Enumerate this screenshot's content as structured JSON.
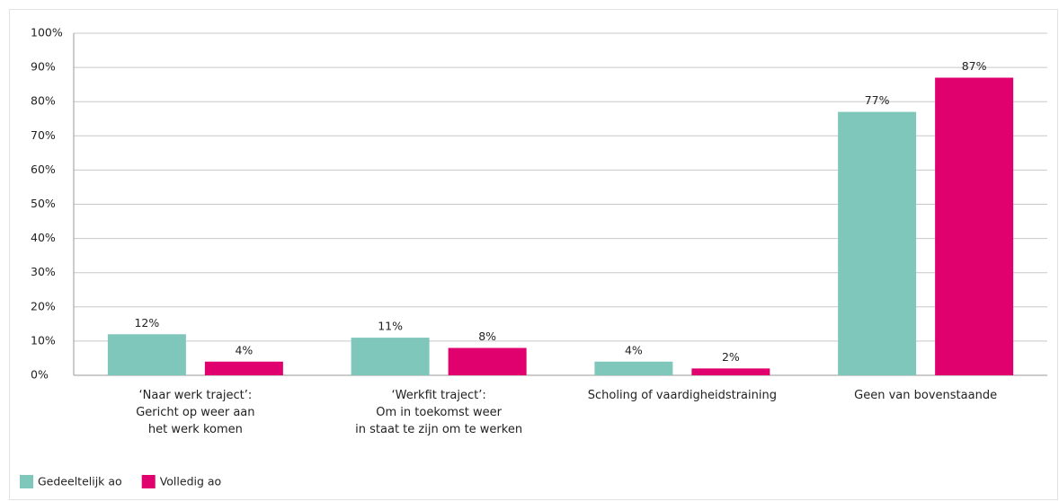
{
  "chart_data": {
    "type": "bar",
    "categories": [
      "‘Naar werk traject’:\nGericht op weer aan\nhet werk komen",
      "‘Werkfit traject’:\nOm in toekomst weer\nin staat te zijn om te werken",
      "Scholing of vaardigheidstraining",
      "Geen van bovenstaande"
    ],
    "series": [
      {
        "name": "Gedeeltelijk ao",
        "color": "#7fc7bb",
        "values": [
          12,
          11,
          4,
          77
        ],
        "value_labels": [
          "12%",
          "11%",
          "4%",
          "77%"
        ]
      },
      {
        "name": "Volledig ao",
        "color": "#e0006e",
        "values": [
          4,
          8,
          2,
          87
        ],
        "value_labels": [
          "4%",
          "8%",
          "2%",
          "87%"
        ]
      }
    ],
    "ylim": [
      0,
      100
    ],
    "yticks": [
      {
        "value": 0,
        "label": "0%"
      },
      {
        "value": 10,
        "label": "10%"
      },
      {
        "value": 20,
        "label": "20%"
      },
      {
        "value": 30,
        "label": "30%"
      },
      {
        "value": 40,
        "label": "40%"
      },
      {
        "value": 50,
        "label": "50%"
      },
      {
        "value": 60,
        "label": "60%"
      },
      {
        "value": 70,
        "label": "70%"
      },
      {
        "value": 80,
        "label": "80%"
      },
      {
        "value": 90,
        "label": "90%"
      },
      {
        "value": 100,
        "label": "100%"
      }
    ],
    "grid": true,
    "legend": "bottom-left"
  }
}
